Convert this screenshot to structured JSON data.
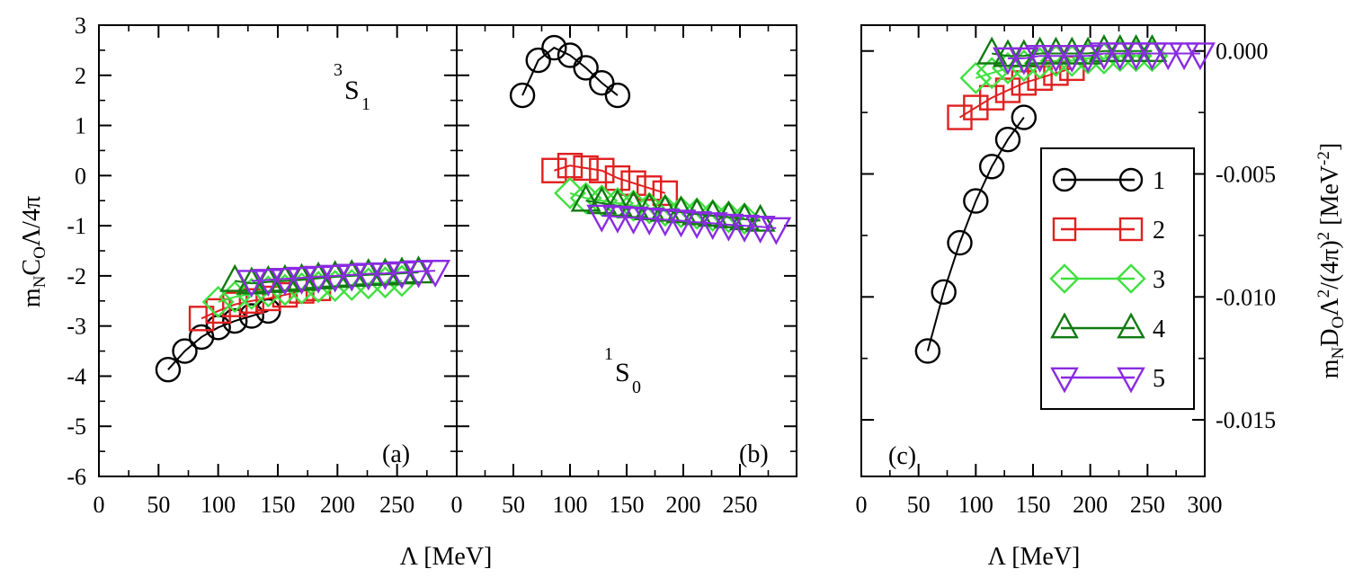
{
  "chart_data": [
    {
      "type": "scatter",
      "panel_label": "(a)",
      "annotation": {
        "base": "S",
        "pre_sup": "3",
        "sub": "1"
      },
      "xlabel": "Λ [MeV]",
      "ylabel": "m",
      "ylabel_parts": {
        "m": "m",
        "m_sub": "N",
        "c": "C",
        "c_sub": "O",
        "rest": "Λ/4π"
      },
      "xlim": [
        0,
        300
      ],
      "ylim": [
        -6,
        3
      ],
      "xticks": [
        "0",
        "50",
        "100",
        "150",
        "200",
        "250"
      ],
      "yticks": [
        "-6",
        "-5",
        "-4",
        "-3",
        "-2",
        "-1",
        "0",
        "1",
        "2",
        "3"
      ],
      "series": [
        {
          "name": "1",
          "x": [
            58,
            72,
            86,
            100,
            114,
            128,
            142
          ],
          "y": [
            -3.87,
            -3.5,
            -3.22,
            -3.03,
            -2.9,
            -2.8,
            -2.7
          ]
        },
        {
          "name": "2",
          "x": [
            86,
            100,
            114,
            128,
            142,
            156,
            170,
            184
          ],
          "y": [
            -2.85,
            -2.7,
            -2.57,
            -2.5,
            -2.45,
            -2.38,
            -2.3,
            -2.25
          ]
        },
        {
          "name": "3",
          "x": [
            100,
            114,
            128,
            142,
            156,
            170,
            184,
            198,
            212,
            226,
            240,
            254
          ],
          "y": [
            -2.52,
            -2.42,
            -2.36,
            -2.31,
            -2.28,
            -2.25,
            -2.22,
            -2.2,
            -2.18,
            -2.15,
            -2.13,
            -2.1
          ]
        },
        {
          "name": "4",
          "x": [
            114,
            128,
            142,
            156,
            170,
            184,
            198,
            212,
            226,
            240,
            254,
            268
          ],
          "y": [
            -2.1,
            -2.15,
            -2.12,
            -2.1,
            -2.08,
            -2.05,
            -2.02,
            -2.0,
            -1.98,
            -1.97,
            -1.95,
            -1.93
          ]
        },
        {
          "name": "5",
          "x": [
            128,
            142,
            156,
            170,
            184,
            198,
            212,
            226,
            240,
            254,
            268,
            282
          ],
          "y": [
            -2.1,
            -2.08,
            -2.06,
            -2.04,
            -2.02,
            -2.0,
            -1.98,
            -1.96,
            -1.95,
            -1.93,
            -1.91,
            -1.9
          ]
        }
      ]
    },
    {
      "type": "scatter",
      "panel_label": "(b)",
      "annotation": {
        "base": "S",
        "pre_sup": "1",
        "sub": "0"
      },
      "xlabel": "Λ [MeV]",
      "xlim": [
        0,
        300
      ],
      "ylim": [
        -6,
        3
      ],
      "xticks": [
        "0",
        "50",
        "100",
        "150",
        "200",
        "250"
      ],
      "series": [
        {
          "name": "1",
          "x": [
            58,
            72,
            86,
            100,
            114,
            128,
            142
          ],
          "y": [
            1.6,
            2.3,
            2.55,
            2.4,
            2.15,
            1.85,
            1.6
          ]
        },
        {
          "name": "2",
          "x": [
            86,
            100,
            114,
            128,
            142,
            156,
            170,
            184
          ],
          "y": [
            0.1,
            0.2,
            0.15,
            0.1,
            -0.05,
            -0.15,
            -0.25,
            -0.35
          ]
        },
        {
          "name": "3",
          "x": [
            100,
            114,
            128,
            142,
            156,
            170,
            184,
            198,
            212,
            226,
            240,
            254
          ],
          "y": [
            -0.35,
            -0.45,
            -0.5,
            -0.55,
            -0.6,
            -0.65,
            -0.7,
            -0.73,
            -0.76,
            -0.8,
            -0.83,
            -0.86
          ]
        },
        {
          "name": "4",
          "x": [
            114,
            128,
            142,
            156,
            170,
            184,
            198,
            212,
            226,
            240,
            254,
            268
          ],
          "y": [
            -0.5,
            -0.55,
            -0.6,
            -0.63,
            -0.67,
            -0.7,
            -0.73,
            -0.77,
            -0.8,
            -0.83,
            -0.87,
            -0.9
          ]
        },
        {
          "name": "5",
          "x": [
            128,
            142,
            156,
            170,
            184,
            198,
            212,
            226,
            240,
            254,
            268,
            282
          ],
          "y": [
            -0.8,
            -0.82,
            -0.84,
            -0.86,
            -0.88,
            -0.9,
            -0.93,
            -0.95,
            -0.98,
            -1.0,
            -1.02,
            -1.05
          ]
        }
      ]
    },
    {
      "type": "scatter",
      "panel_label": "(c)",
      "xlabel": "Λ [MeV]",
      "ylabel": "m",
      "ylabel_parts": {
        "m": "m",
        "m_sub": "N",
        "d": "D",
        "d_sub": "O",
        "lam": "Λ",
        "lam_sup": "2",
        "mid": "/(4π)",
        "mid_sup": "2",
        "unit": " [MeV",
        "unit_sup": "-2",
        "close": "]"
      },
      "xlim": [
        0,
        300
      ],
      "ylim": [
        -0.0173,
        0.00105
      ],
      "xticks": [
        "0",
        "50",
        "100",
        "150",
        "200",
        "250",
        "300"
      ],
      "yticks": [
        "-0.015",
        "-0.010",
        "-0.005",
        "0.000"
      ],
      "ytick_values": [
        -0.015,
        -0.01,
        -0.005,
        0.0
      ],
      "legend": {
        "position": "right",
        "entries": [
          "1",
          "2",
          "3",
          "4",
          "5"
        ]
      },
      "series": [
        {
          "name": "1",
          "x": [
            58,
            72,
            86,
            100,
            114,
            128,
            142
          ],
          "y": [
            -0.0122,
            -0.0098,
            -0.0078,
            -0.0061,
            -0.0047,
            -0.0036,
            -0.0027
          ]
        },
        {
          "name": "2",
          "x": [
            86,
            100,
            114,
            128,
            142,
            156,
            170,
            184
          ],
          "y": [
            -0.0027,
            -0.0023,
            -0.0019,
            -0.0016,
            -0.0013,
            -0.0011,
            -0.0009,
            -0.0007
          ]
        },
        {
          "name": "3",
          "x": [
            100,
            114,
            128,
            142,
            156,
            170,
            184,
            198,
            212,
            226,
            240,
            254
          ],
          "y": [
            -0.0011,
            -0.0009,
            -0.0007,
            -0.0006,
            -0.0005,
            -0.0004,
            -0.0004,
            -0.0003,
            -0.0003,
            -0.0002,
            -0.0002,
            -0.0002
          ]
        },
        {
          "name": "4",
          "x": [
            114,
            128,
            142,
            156,
            170,
            184,
            198,
            212,
            226,
            240,
            254
          ],
          "y": [
            -0.0001,
            -0.0002,
            -0.0002,
            -0.0001,
            -0.0001,
            -0.0001,
            -0.0001,
            0.0,
            0.0,
            0.0,
            0.0
          ]
        },
        {
          "name": "5",
          "x": [
            128,
            142,
            156,
            170,
            184,
            198,
            212,
            226,
            240,
            254,
            268,
            282,
            296
          ],
          "y": [
            -0.0003,
            -0.0003,
            -0.0002,
            -0.0002,
            -0.0002,
            -0.0002,
            -0.0001,
            -0.0001,
            -0.0001,
            -0.0001,
            -0.0001,
            -0.0001,
            -0.0001
          ]
        }
      ]
    }
  ],
  "series_styles": {
    "1": {
      "color": "#000000",
      "marker": "circle"
    },
    "2": {
      "color": "#e02020",
      "marker": "square"
    },
    "3": {
      "color": "#40e040",
      "marker": "diamond"
    },
    "4": {
      "color": "#107a10",
      "marker": "triangle-up"
    },
    "5": {
      "color": "#8a2be2",
      "marker": "triangle-down"
    }
  }
}
